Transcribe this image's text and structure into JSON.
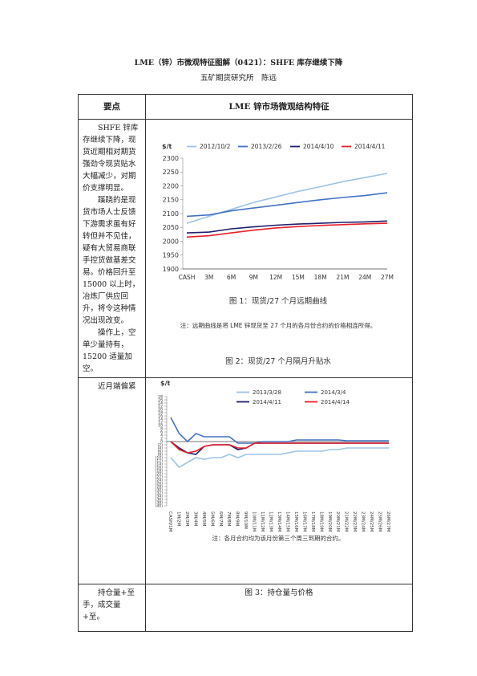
{
  "header": {
    "title": "LME（锌）市微观特征图解（0421）：SHFE 库存继续下降",
    "author": "五矿期货研究所　陈远"
  },
  "table": {
    "head": [
      "要点",
      "LME 锌市场微观结构特征"
    ],
    "rows": [
      [
        "SHFE 锌库存继续下降，现货近期相对期货强劲令现货贴水大幅减少，对期价支撑明显。",
        "蹊跷的是现货市场人士反馈下游需求虽有好转但并不见佳，疑有大贸易商联手控货做基差交易。价格回升至 15000 以上时，冶炼厂供应回升，将令这种情况出现改变。",
        "操作上，空单少量持有，15200 适量加空。"
      ],
      [
        "近月端偏紧"
      ],
      [
        "持仓量+至手，成交量+至。",
        "图 3：持仓量与价格"
      ]
    ]
  },
  "chart_data": [
    {
      "type": "line",
      "caption": "图 1：现货/27 个月远期曲线",
      "note": "注：远期曲线是将 LME 锌现货至 27 个月的各月份合约的价格相连所得。",
      "ylabel": "$/t",
      "categories": [
        "CASH",
        "3M",
        "6M",
        "9M",
        "12M",
        "15M",
        "18M",
        "21M",
        "24M",
        "27M"
      ],
      "series": [
        {
          "name": "2012/10/2",
          "color": "#9dc3e6",
          "values": [
            2065,
            2090,
            2115,
            2140,
            2160,
            2180,
            2197,
            2215,
            2230,
            2245
          ]
        },
        {
          "name": "2013/2/26",
          "color": "#4472c4",
          "values": [
            2090,
            2095,
            2110,
            2120,
            2130,
            2140,
            2150,
            2158,
            2165,
            2175
          ]
        },
        {
          "name": "2014/4/10",
          "color": "#1f1f6e",
          "values": [
            2030,
            2033,
            2045,
            2052,
            2058,
            2062,
            2065,
            2068,
            2070,
            2073
          ]
        },
        {
          "name": "2014/4/11",
          "color": "#e8202a",
          "values": [
            2015,
            2020,
            2030,
            2040,
            2048,
            2053,
            2057,
            2060,
            2063,
            2065
          ]
        }
      ],
      "ylim": [
        1900,
        2300
      ],
      "yticks": [
        1900,
        1950,
        2000,
        2050,
        2100,
        2150,
        2200,
        2250,
        2300
      ]
    },
    {
      "type": "line",
      "title": "图 2：现货/27 个月隔月升贴水",
      "note": "注：各月合约均为该月份第三个周三到期的合约。",
      "ylabel": "$/t",
      "categories": [
        "CASH/1M",
        "1M/2M",
        "2M/3M",
        "3M/4M",
        "4M/5M",
        "5M/6M",
        "6M/7M",
        "7M/8M",
        "8M/9M",
        "9M/10M",
        "10M/11M",
        "11M/12M",
        "12M/13M",
        "13M/14M",
        "14M/15M",
        "15M/16M",
        "16M/17M",
        "17M/18M",
        "18M/19M",
        "19M/20M",
        "20M/21M",
        "21M/22M",
        "22M/23M",
        "23M/24M",
        "24M/25M",
        "25M/26M",
        "26M/27M"
      ],
      "series": [
        {
          "name": "2013/3/28",
          "color": "#9dc3e6",
          "values": [
            -10,
            -16,
            -13,
            -10,
            -11,
            -10,
            -10,
            -8,
            -10,
            -8,
            -8,
            -8,
            -8,
            -8,
            -7,
            -6,
            -6,
            -6,
            -6,
            -5,
            -5,
            -4,
            -4,
            -4,
            -4,
            -4,
            -4
          ]
        },
        {
          "name": "2014/3/4",
          "color": "#4472c4",
          "values": [
            15,
            5,
            0,
            5,
            3,
            3,
            3,
            3,
            -1,
            -1,
            -1,
            0,
            0,
            0,
            0,
            1,
            1,
            1,
            1,
            1,
            1,
            0.5,
            0.5,
            0.5,
            0.5,
            0.5,
            0.5
          ]
        },
        {
          "name": "2014/4/11",
          "color": "#1f1f6e",
          "values": [
            0,
            -4,
            -7,
            -8,
            -3,
            -2,
            -2,
            -2,
            -5,
            -4,
            -1,
            -1,
            -1,
            -1,
            -1,
            -1,
            -1,
            -1,
            -1,
            -1,
            -1,
            -1,
            -1,
            -1,
            -1,
            -1,
            -1
          ]
        },
        {
          "name": "2014/4/14",
          "color": "#e8202a",
          "values": [
            0,
            -5,
            -7,
            -6,
            -3,
            -2,
            -2,
            -2,
            -4,
            -4,
            -1,
            -1,
            -1,
            -1,
            -1,
            -1,
            -1,
            -1,
            -1,
            -1,
            -1,
            -1,
            -1,
            -1,
            -1,
            -1,
            -1
          ]
        }
      ],
      "ylim": [
        -40,
        28
      ],
      "yticks": [
        28,
        26,
        24,
        22,
        20,
        18,
        16,
        14,
        12,
        10,
        8,
        6,
        4,
        2,
        0,
        {
          "value": -2,
          "label": "(2)"
        },
        {
          "value": -4,
          "label": "(4)"
        },
        {
          "value": -6,
          "label": "(6)"
        },
        {
          "value": -8,
          "label": "(8)"
        },
        {
          "value": -10,
          "label": "(10)"
        },
        {
          "value": -12,
          "label": "(12)"
        },
        {
          "value": -14,
          "label": "(14)"
        },
        {
          "value": -16,
          "label": "(16)"
        },
        {
          "value": -18,
          "label": "(18)"
        },
        {
          "value": -20,
          "label": "(20)"
        },
        {
          "value": -22,
          "label": "(22)"
        },
        {
          "value": -24,
          "label": "(24)"
        },
        {
          "value": -26,
          "label": "(26)"
        },
        {
          "value": -28,
          "label": "(28)"
        },
        {
          "value": -30,
          "label": "(30)"
        },
        {
          "value": -32,
          "label": "(32)"
        },
        {
          "value": -34,
          "label": "(34)"
        },
        {
          "value": -36,
          "label": "(36)"
        },
        {
          "value": -38,
          "label": "(38)"
        },
        {
          "value": -40,
          "label": "(40)"
        }
      ]
    }
  ]
}
